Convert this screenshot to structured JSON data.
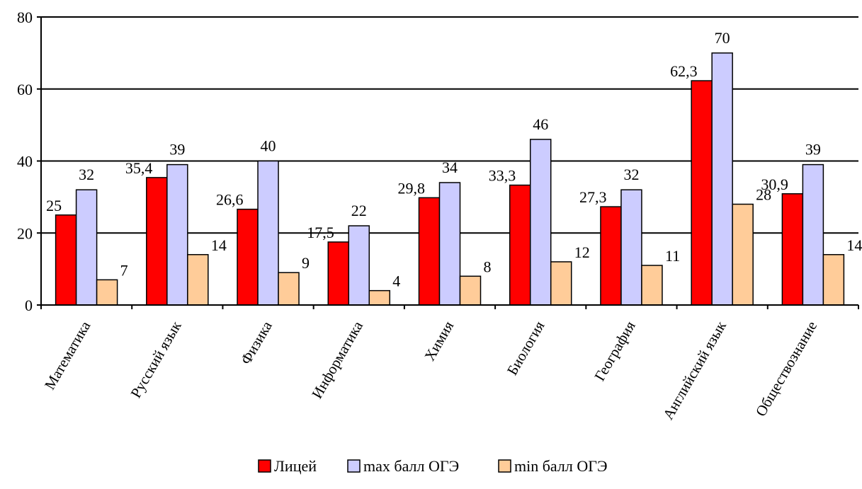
{
  "chart_data": {
    "type": "bar",
    "title": "",
    "xlabel": "",
    "ylabel": "",
    "ylim": [
      0,
      80
    ],
    "yticks": [
      0,
      20,
      40,
      60,
      80
    ],
    "grid": true,
    "legend_position": "bottom",
    "categories": [
      "Математика",
      "Русский язык",
      "Физика",
      "Информатика",
      "Химия",
      "Биология",
      "География",
      "Английский язык",
      "Обществознание"
    ],
    "series": [
      {
        "name": "Лицей",
        "color": "#ff0000",
        "values": [
          25,
          35.4,
          26.6,
          17.5,
          29.8,
          33.3,
          27.3,
          62.3,
          30.9
        ],
        "labels": [
          "25",
          "35,4",
          "26,6",
          "17,5",
          "29,8",
          "33,3",
          "27,3",
          "62,3",
          "30,9"
        ]
      },
      {
        "name": "max балл ОГЭ",
        "color": "#ccccff",
        "values": [
          32,
          39,
          40,
          22,
          34,
          46,
          32,
          70,
          39
        ],
        "labels": [
          "32",
          "39",
          "40",
          "22",
          "34",
          "46",
          "32",
          "70",
          "39"
        ]
      },
      {
        "name": "min балл ОГЭ",
        "color": "#ffcc99",
        "values": [
          7,
          14,
          9,
          4,
          8,
          12,
          11,
          28,
          14
        ],
        "labels": [
          "7",
          "14",
          "9",
          "4",
          "8",
          "12",
          "11",
          "28",
          "14"
        ]
      }
    ]
  }
}
